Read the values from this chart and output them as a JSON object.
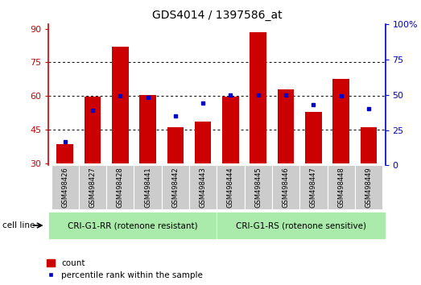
{
  "title": "GDS4014 / 1397586_at",
  "categories": [
    "GSM498426",
    "GSM498427",
    "GSM498428",
    "GSM498441",
    "GSM498442",
    "GSM498443",
    "GSM498444",
    "GSM498445",
    "GSM498446",
    "GSM498447",
    "GSM498448",
    "GSM498449"
  ],
  "count_values": [
    38.5,
    59.5,
    82.0,
    60.5,
    46.0,
    48.5,
    59.5,
    88.5,
    63.0,
    53.0,
    67.5,
    46.0
  ],
  "percentile_values": [
    17,
    39,
    49,
    48,
    35,
    44,
    50,
    50,
    50,
    43,
    49,
    40
  ],
  "bar_color": "#CC0000",
  "dot_color": "#0000CC",
  "ylim_left": [
    29,
    92
  ],
  "yticks_left": [
    30,
    45,
    60,
    75,
    90
  ],
  "ylim_right": [
    0,
    100
  ],
  "yticks_right": [
    0,
    25,
    50,
    75,
    100
  ],
  "group1_label": "CRI-G1-RR (rotenone resistant)",
  "group2_label": "CRI-G1-RS (rotenone sensitive)",
  "group_bg_color": "#aaeaaa",
  "cell_line_label": "cell line",
  "legend_count": "count",
  "legend_percentile": "percentile rank within the sample",
  "axis_left_color": "#CC0000",
  "axis_right_color": "#0000CC",
  "grid_color": "#000000",
  "plot_bg_color": "#ffffff",
  "xtick_bg_color": "#cccccc"
}
